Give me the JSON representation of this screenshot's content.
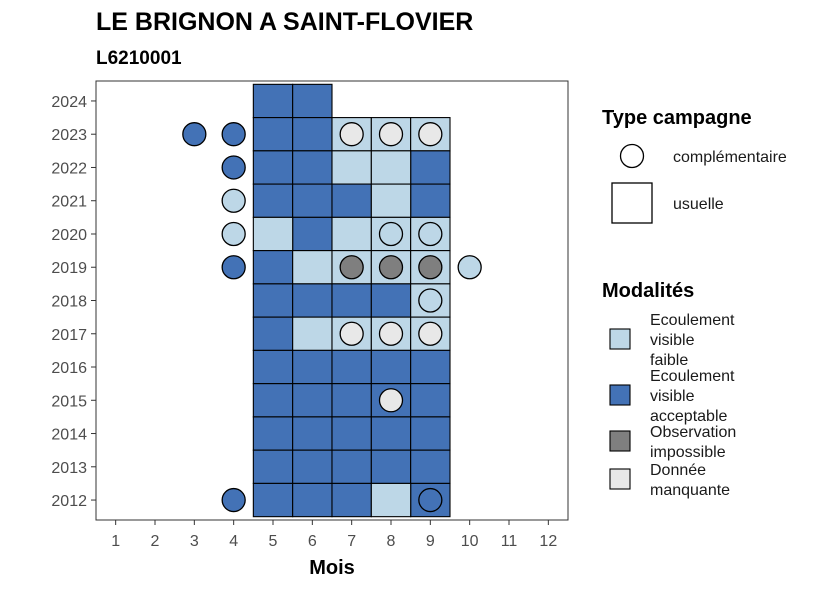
{
  "chart_data": {
    "type": "heatmap",
    "title": "LE BRIGNON A SAINT-FLOVIER",
    "subtitle": "L6210001",
    "xlabel": "Mois",
    "ylabel": "",
    "x_ticks": [
      1,
      2,
      3,
      4,
      5,
      6,
      7,
      8,
      9,
      10,
      11,
      12
    ],
    "y_ticks": [
      2012,
      2013,
      2014,
      2015,
      2016,
      2017,
      2018,
      2019,
      2020,
      2021,
      2022,
      2023,
      2024
    ],
    "xlim": [
      0.5,
      12.5
    ],
    "ylim": [
      2011.4,
      2024.6
    ],
    "grid": false,
    "legend_position": "right",
    "legend_shape": {
      "title": "Type campagne",
      "entries": [
        {
          "key": "complementaire",
          "label": "complémentaire",
          "shape": "circle"
        },
        {
          "key": "usuelle",
          "label": "usuelle",
          "shape": "square"
        }
      ]
    },
    "legend_fill": {
      "title": "Modalités",
      "entries": [
        {
          "key": "EVF",
          "label_lines": [
            "Ecoulement",
            "visible",
            "faible"
          ],
          "color": "#BDD7E7"
        },
        {
          "key": "EVA",
          "label_lines": [
            "Ecoulement",
            "visible",
            "acceptable"
          ],
          "color": "#4372B6"
        },
        {
          "key": "OI",
          "label_lines": [
            "Observation",
            "impossible"
          ],
          "color": "#7F7F7F"
        },
        {
          "key": "DM",
          "label_lines": [
            "Donnée",
            "manquante"
          ],
          "color": "#E8E8E8"
        }
      ]
    },
    "usuelle": [
      {
        "year": 2024,
        "months": [
          5,
          6
        ],
        "fill": "EVA"
      },
      {
        "year": 2023,
        "months": [
          5,
          6
        ],
        "fill": "EVA"
      },
      {
        "year": 2023,
        "months": [
          7,
          8,
          9
        ],
        "fill": "EVF"
      },
      {
        "year": 2022,
        "months": [
          5,
          6,
          9
        ],
        "fill": "EVA"
      },
      {
        "year": 2022,
        "months": [
          7,
          8
        ],
        "fill": "EVF"
      },
      {
        "year": 2021,
        "months": [
          5,
          6,
          7,
          9
        ],
        "fill": "EVA"
      },
      {
        "year": 2021,
        "months": [
          8
        ],
        "fill": "EVF"
      },
      {
        "year": 2020,
        "months": [
          6
        ],
        "fill": "EVA"
      },
      {
        "year": 2020,
        "months": [
          5,
          7,
          8,
          9
        ],
        "fill": "EVF"
      },
      {
        "year": 2019,
        "months": [
          5
        ],
        "fill": "EVA"
      },
      {
        "year": 2019,
        "months": [
          6,
          7,
          8,
          9
        ],
        "fill": "EVF"
      },
      {
        "year": 2018,
        "months": [
          5,
          6,
          7,
          8
        ],
        "fill": "EVA"
      },
      {
        "year": 2018,
        "months": [
          9
        ],
        "fill": "EVF"
      },
      {
        "year": 2017,
        "months": [
          5
        ],
        "fill": "EVA"
      },
      {
        "year": 2017,
        "months": [
          6,
          7,
          8,
          9
        ],
        "fill": "EVF"
      },
      {
        "year": 2016,
        "months": [
          5,
          6,
          7,
          8,
          9
        ],
        "fill": "EVA"
      },
      {
        "year": 2015,
        "months": [
          5,
          6,
          7,
          8,
          9
        ],
        "fill": "EVA"
      },
      {
        "year": 2014,
        "months": [
          5,
          6,
          7,
          8,
          9
        ],
        "fill": "EVA"
      },
      {
        "year": 2013,
        "months": [
          5,
          6,
          7,
          8,
          9
        ],
        "fill": "EVA"
      },
      {
        "year": 2012,
        "months": [
          5,
          6,
          7,
          9
        ],
        "fill": "EVA"
      },
      {
        "year": 2012,
        "months": [
          8
        ],
        "fill": "EVF"
      }
    ],
    "complementaire": [
      {
        "year": 2023,
        "month": 3,
        "fill": "EVA"
      },
      {
        "year": 2023,
        "month": 4,
        "fill": "EVA"
      },
      {
        "year": 2023,
        "month": 7,
        "fill": "DM"
      },
      {
        "year": 2023,
        "month": 8,
        "fill": "DM"
      },
      {
        "year": 2023,
        "month": 9,
        "fill": "DM"
      },
      {
        "year": 2022,
        "month": 4,
        "fill": "EVA"
      },
      {
        "year": 2021,
        "month": 4,
        "fill": "EVF"
      },
      {
        "year": 2020,
        "month": 4,
        "fill": "EVF"
      },
      {
        "year": 2020,
        "month": 8,
        "fill": "EVF"
      },
      {
        "year": 2020,
        "month": 9,
        "fill": "EVF"
      },
      {
        "year": 2019,
        "month": 4,
        "fill": "EVA"
      },
      {
        "year": 2019,
        "month": 7,
        "fill": "OI"
      },
      {
        "year": 2019,
        "month": 8,
        "fill": "OI"
      },
      {
        "year": 2019,
        "month": 9,
        "fill": "OI"
      },
      {
        "year": 2019,
        "month": 10,
        "fill": "EVF"
      },
      {
        "year": 2018,
        "month": 9,
        "fill": "EVF"
      },
      {
        "year": 2017,
        "month": 7,
        "fill": "DM"
      },
      {
        "year": 2017,
        "month": 8,
        "fill": "DM"
      },
      {
        "year": 2017,
        "month": 9,
        "fill": "DM"
      },
      {
        "year": 2015,
        "month": 8,
        "fill": "DM"
      },
      {
        "year": 2012,
        "month": 4,
        "fill": "EVA"
      },
      {
        "year": 2012,
        "month": 9,
        "fill": "EVA"
      }
    ]
  }
}
